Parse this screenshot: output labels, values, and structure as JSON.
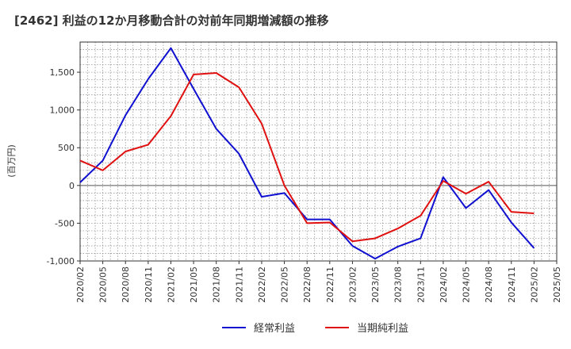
{
  "chart_data": {
    "type": "line",
    "title": "[2462]  利益の12か月移動合計の対前年同期増減額の推移",
    "ylabel": "(百万円)",
    "xlabel": "",
    "ylim": [
      -1000,
      1900
    ],
    "yticks": [
      -1000,
      -500,
      0,
      500,
      1000,
      1500
    ],
    "ytick_labels": [
      "-1,000",
      "-500",
      "0",
      "500",
      "1,000",
      "1,500"
    ],
    "categories": [
      "2020/02",
      "2020/05",
      "2020/08",
      "2020/11",
      "2021/02",
      "2021/05",
      "2021/08",
      "2021/11",
      "2022/02",
      "2022/05",
      "2022/08",
      "2022/11",
      "2023/02",
      "2023/05",
      "2023/08",
      "2023/11",
      "2024/02",
      "2024/05",
      "2024/08",
      "2024/11",
      "2025/02",
      "2025/05"
    ],
    "series": [
      {
        "name": "経常利益",
        "color": "#1010d0",
        "values": [
          40,
          330,
          930,
          1410,
          1820,
          1280,
          750,
          420,
          -150,
          -100,
          -450,
          -450,
          -800,
          -970,
          -810,
          -700,
          110,
          -300,
          -60,
          -490,
          -830,
          null
        ]
      },
      {
        "name": "当期純利益",
        "color": "#e01010",
        "values": [
          330,
          200,
          450,
          540,
          920,
          1470,
          1490,
          1300,
          820,
          0,
          -500,
          -490,
          -740,
          -700,
          -570,
          -400,
          60,
          -110,
          50,
          -350,
          -370,
          null
        ]
      }
    ],
    "grid": true,
    "legend": "bottom-center"
  }
}
